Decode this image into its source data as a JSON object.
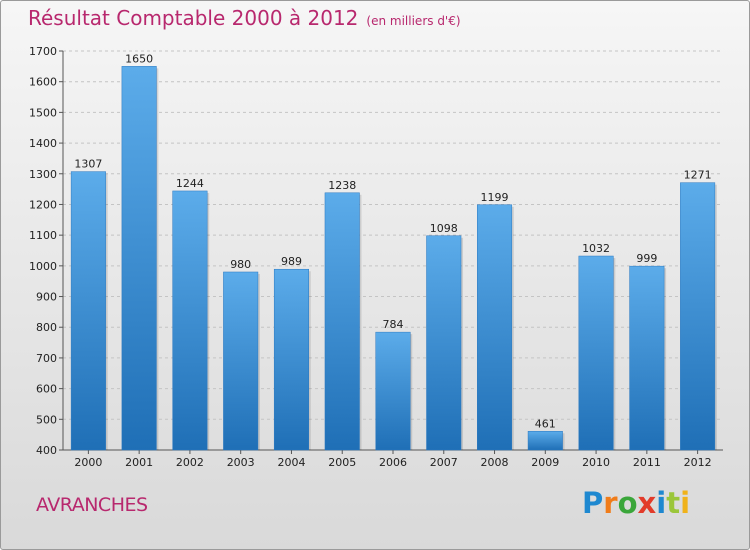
{
  "chart_data": {
    "type": "bar",
    "title": "Résultat Comptable 2000 à 2012",
    "subtitle": "(en milliers d'€)",
    "categories": [
      "2000",
      "2001",
      "2002",
      "2003",
      "2004",
      "2005",
      "2006",
      "2007",
      "2008",
      "2009",
      "2010",
      "2011",
      "2012"
    ],
    "values": [
      1307,
      1650,
      1244,
      980,
      989,
      1238,
      784,
      1098,
      1199,
      461,
      1032,
      999,
      1271
    ],
    "ylim": [
      400,
      1700
    ],
    "yticks": [
      400,
      500,
      600,
      700,
      800,
      900,
      1000,
      1100,
      1200,
      1300,
      1400,
      1500,
      1600,
      1700
    ],
    "grid": true,
    "bar_color": "#3d8fd8",
    "bar_color_top": "#5cacea",
    "bar_color_bottom": "#1f6fb6"
  },
  "location_label": "AVRANCHES",
  "brand": {
    "letters": [
      "P",
      "r",
      "o",
      "x",
      "i",
      "t",
      "i"
    ],
    "colors": [
      "#1e88d0",
      "#f07c1a",
      "#3aa63a",
      "#e23b2a",
      "#1e88d0",
      "#9bc63a",
      "#f0b21a"
    ]
  },
  "colors": {
    "accent": "#b8286e"
  }
}
